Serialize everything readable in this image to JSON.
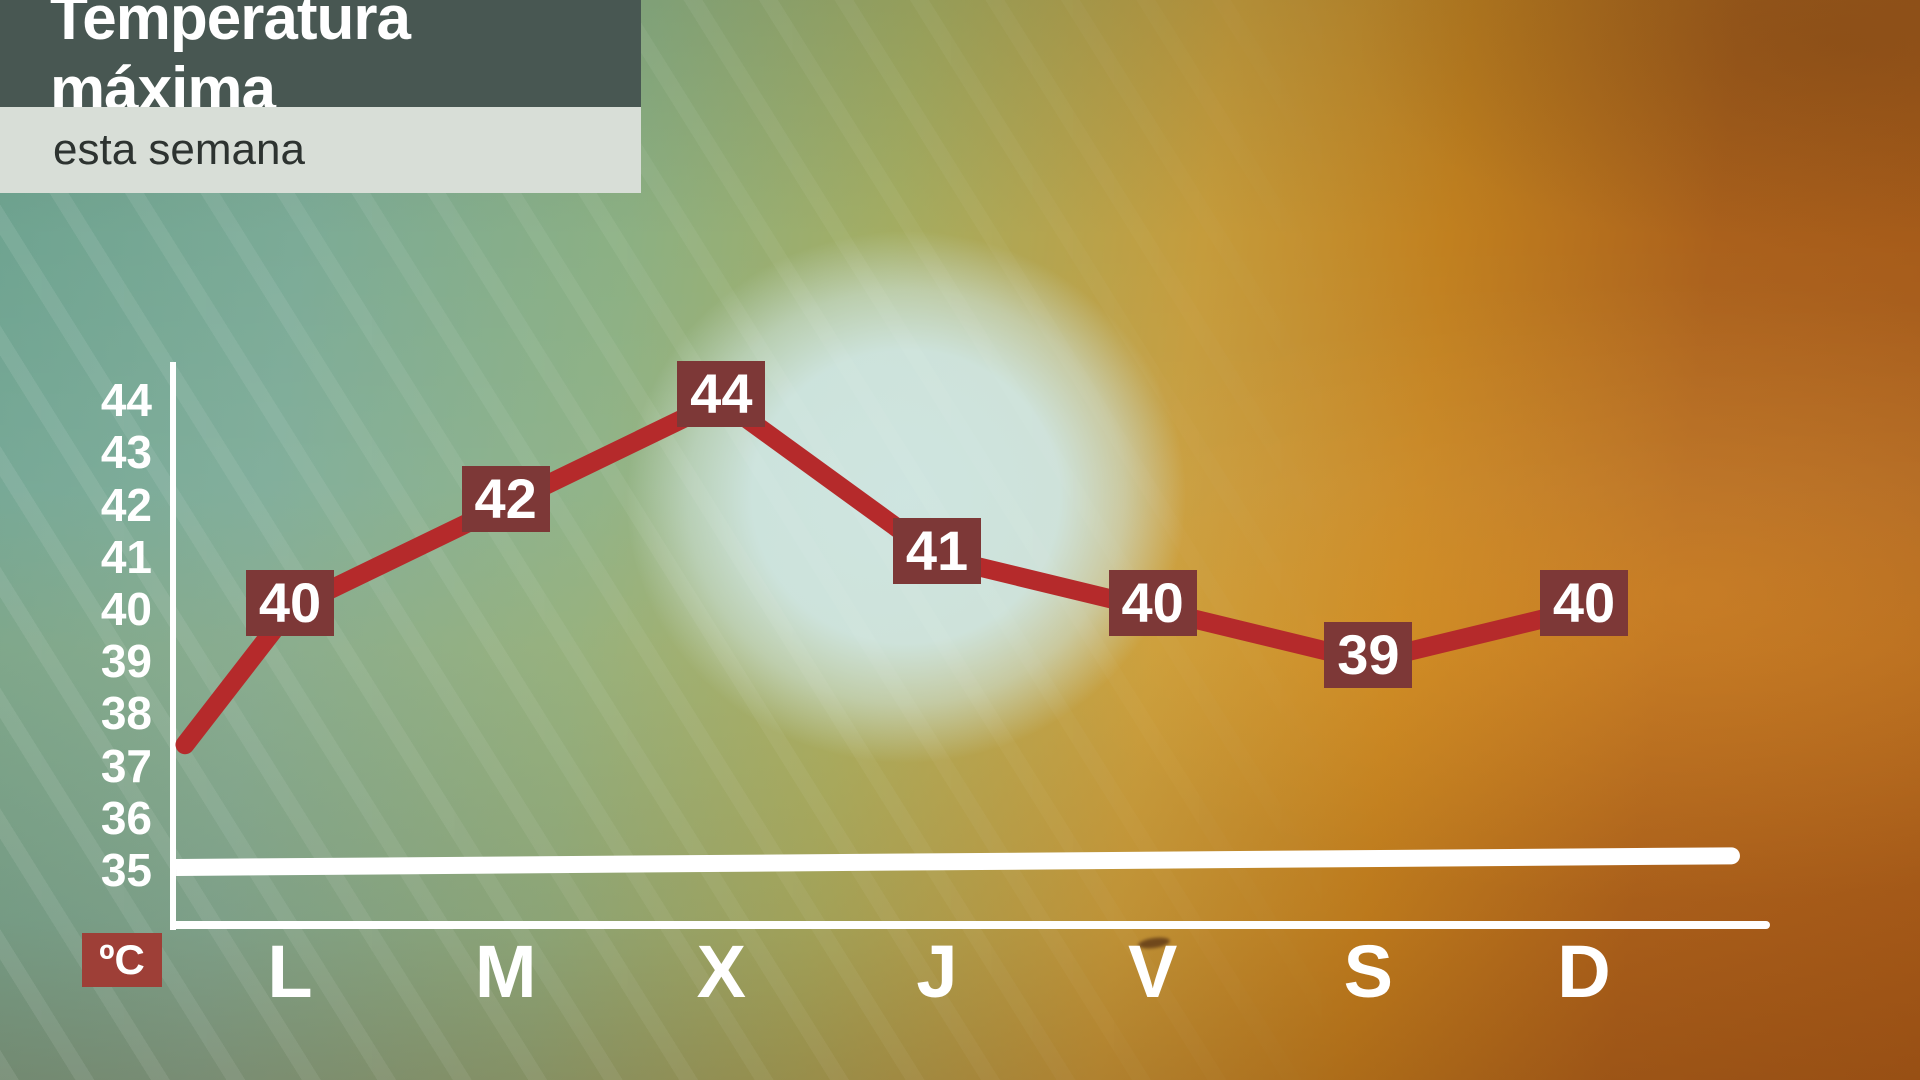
{
  "header": {
    "title": "Temperatura máxima",
    "subtitle": "esta semana"
  },
  "chart_data": {
    "type": "line",
    "title": "Temperatura máxima",
    "subtitle": "esta semana",
    "unit_label": "ºC",
    "categories": [
      "L",
      "M",
      "X",
      "J",
      "V",
      "S",
      "D"
    ],
    "values": [
      40,
      42,
      44,
      41,
      40,
      39,
      40
    ],
    "yticks": [
      44,
      43,
      42,
      41,
      40,
      39,
      38,
      37,
      36,
      35
    ],
    "ylim": [
      35,
      44
    ],
    "lead_in_value": 37.4,
    "grid": "off",
    "legend": "none",
    "line_color": "#b52a2b",
    "label_box_color": "#7d3837",
    "unit_box_color": "#9e3f37",
    "axis_color": "#ffffff"
  }
}
